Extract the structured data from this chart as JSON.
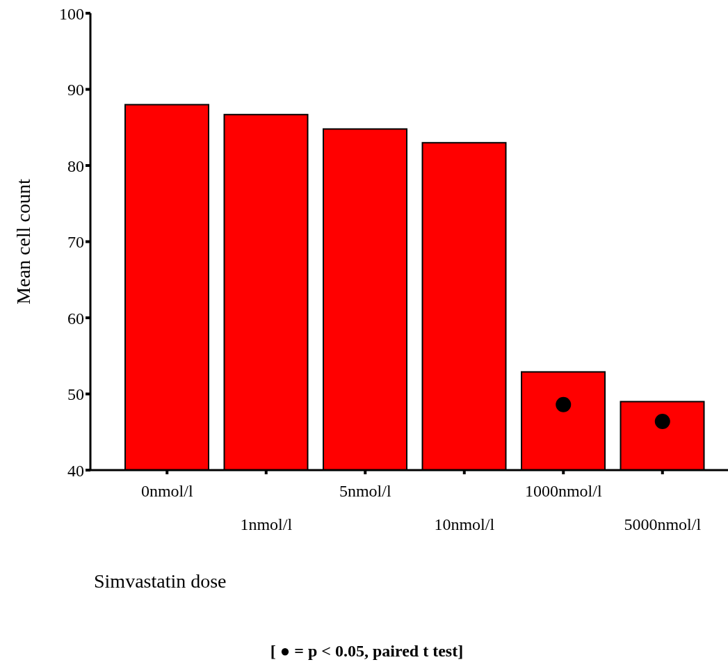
{
  "chart_data": {
    "type": "bar",
    "xlabel": "Simvastatin dose",
    "ylabel": "Mean cell count",
    "categories": [
      "0nmol/l",
      "1nmol/l",
      "5nmol/l",
      "10nmol/l",
      "1000nmol/l",
      "5000nmol/l"
    ],
    "series": [
      {
        "color": "#ff0000",
        "values": [
          88,
          86.7,
          84.8,
          83,
          52.9,
          49
        ]
      },
      {
        "type": "scatter",
        "color": "#000000",
        "x": [
          "1000nmol/l",
          "5000nmol/l"
        ],
        "values": [
          48.6,
          46.4
        ]
      }
    ],
    "ylim": [
      40,
      100
    ],
    "yticks": [
      40,
      50,
      60,
      70,
      80,
      90,
      100
    ],
    "marker": "circle",
    "annotations": [
      "[ ● = p < 0.05, paired t test]"
    ]
  }
}
